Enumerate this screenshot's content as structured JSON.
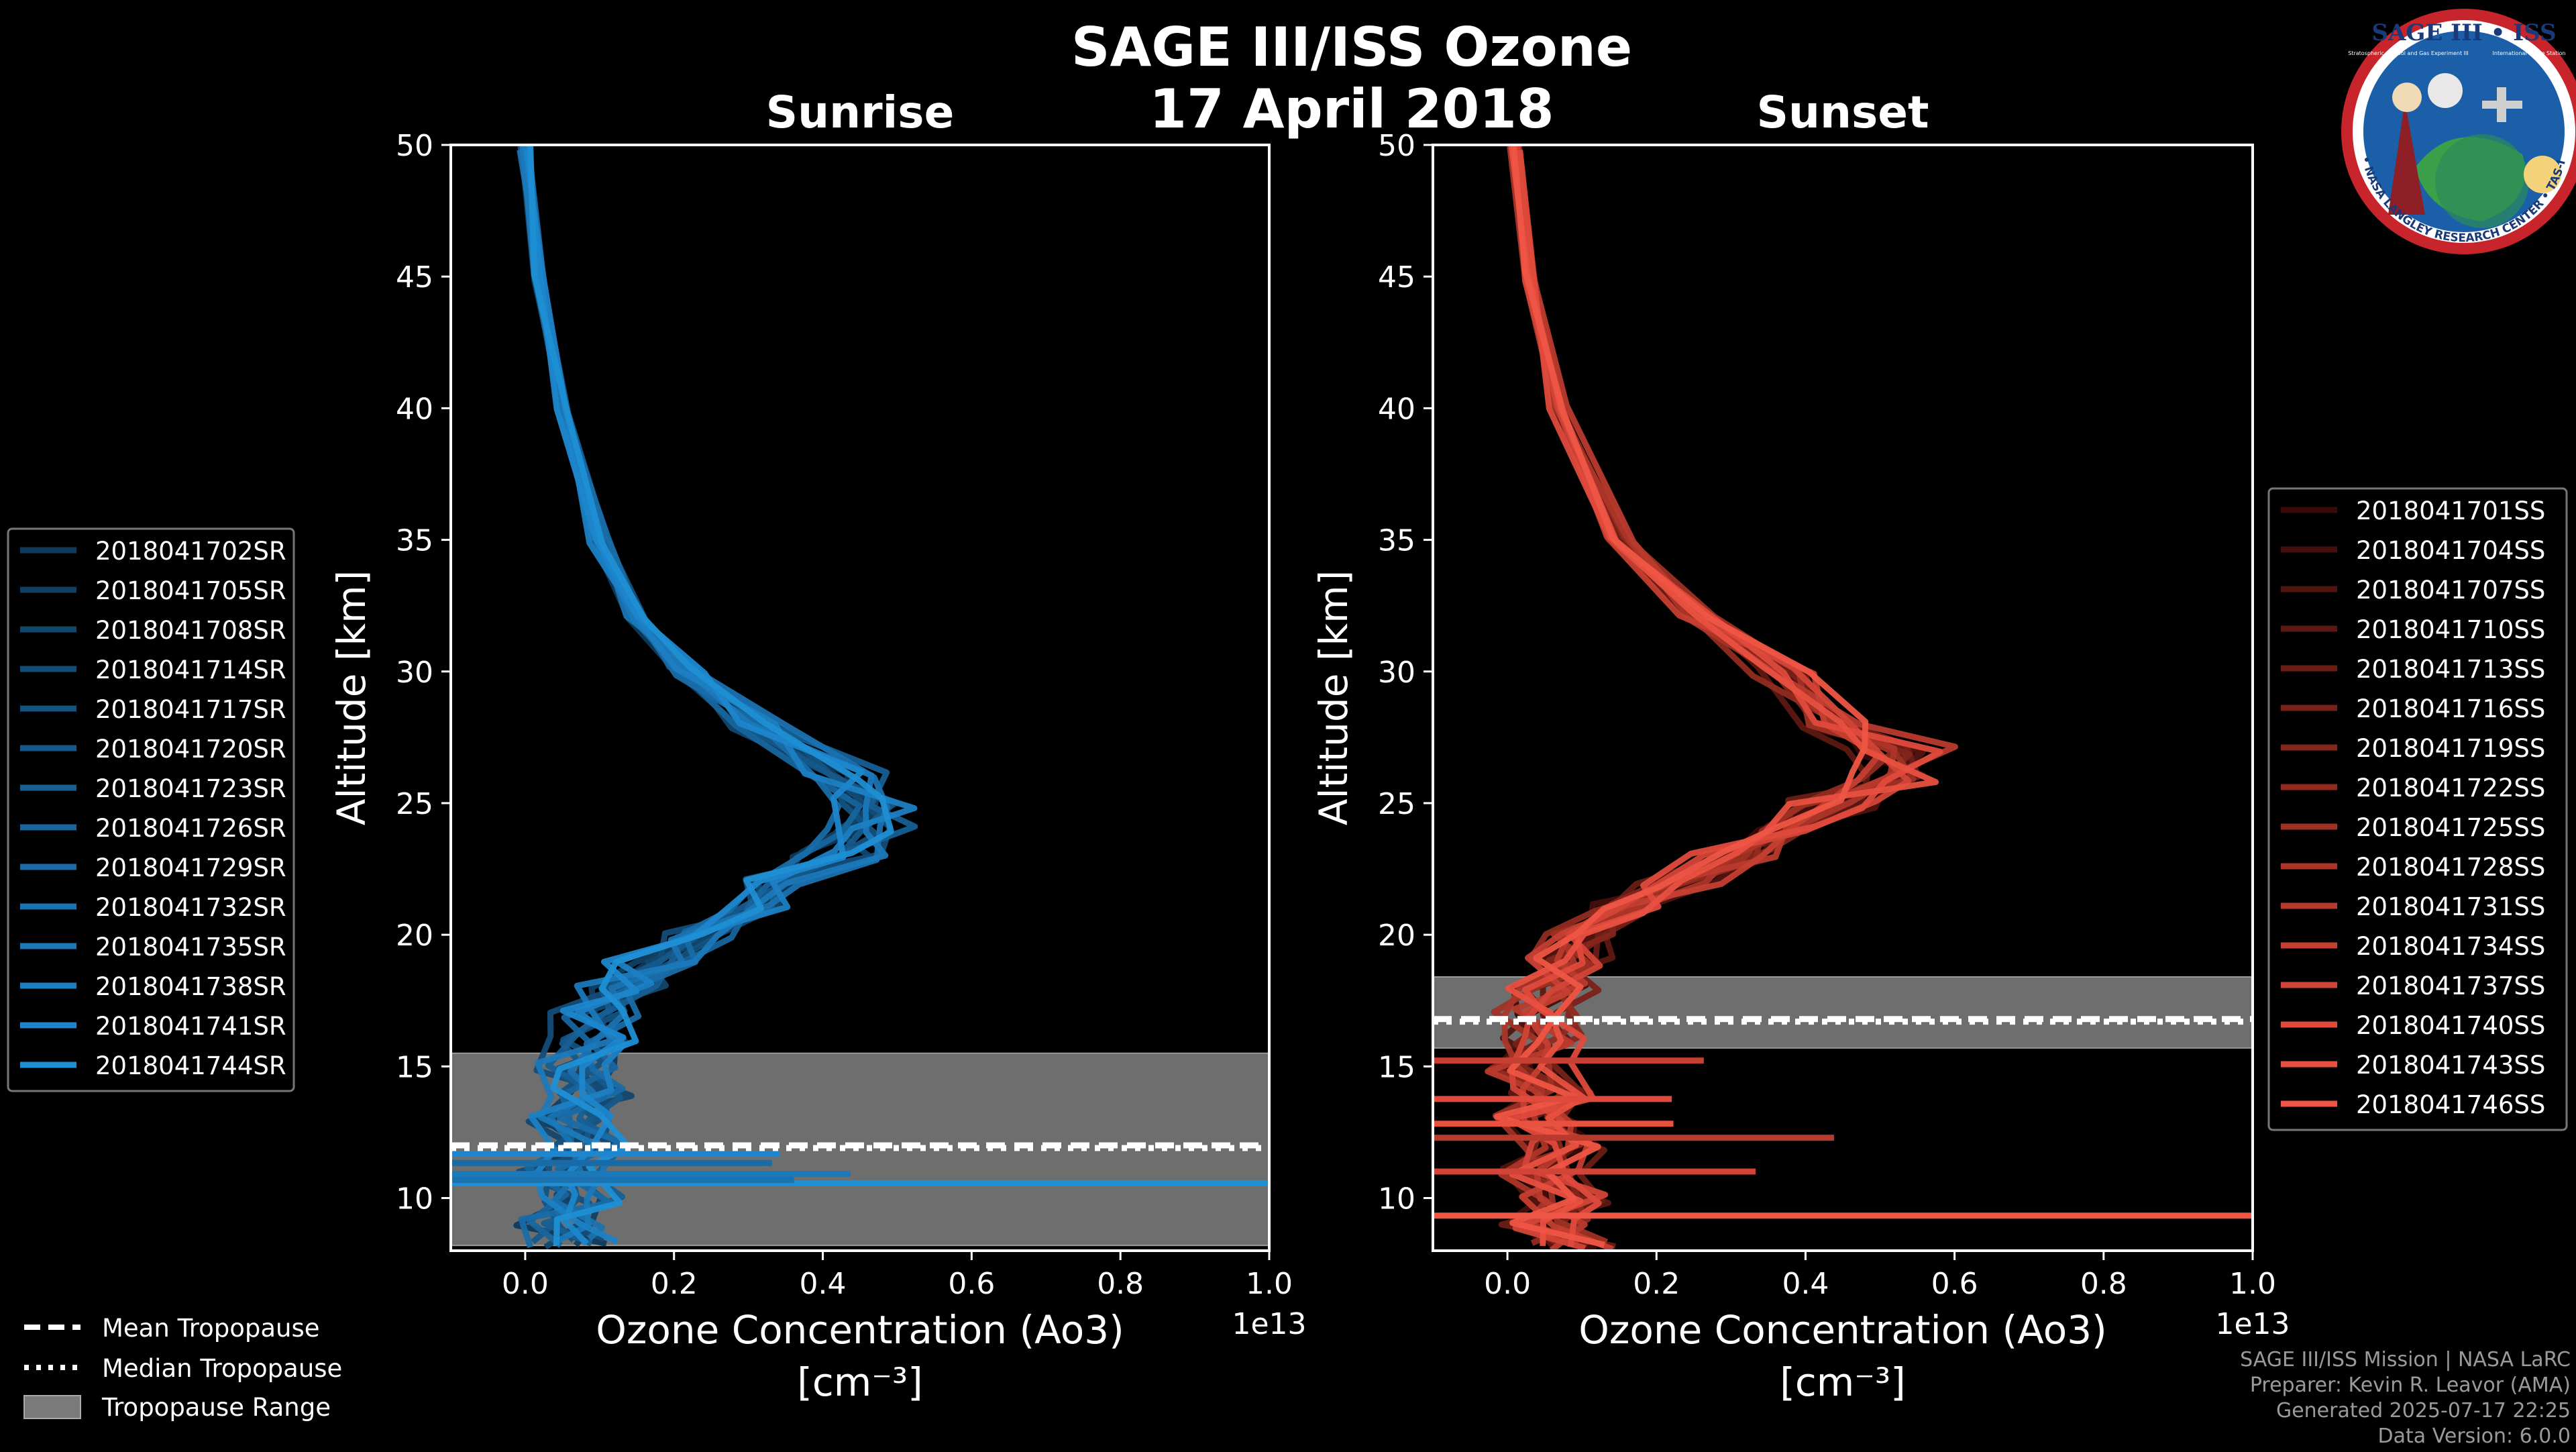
{
  "title_line1": "SAGE III/ISS Ozone",
  "title_line2": "17 April 2018",
  "logo": {
    "text_top": "SAGE III • ISS",
    "text_ring": "BALL • NASA LANGLEY RESEARCH CENTER • TAS-I • ESA",
    "text_small_left": "Stratospheric Aerosol and Gas Experiment III",
    "text_small_right": "International Space Station"
  },
  "footer": {
    "line1": "SAGE III/ISS Mission | NASA LaRC",
    "line2": "Preparer: Kevin R. Leavor (AMA)",
    "line3": "Generated 2025-07-17 22:25",
    "line4": "Data Version: 6.0.0"
  },
  "shared_legend": {
    "mean": "Mean Tropopause",
    "median": "Median Tropopause",
    "range": "Tropopause Range"
  },
  "colors": {
    "sunrise": "#1f8fd4",
    "sunset": "#ef5545",
    "tropo_fill": "#7a7a7a"
  },
  "chart_data": [
    {
      "type": "line",
      "title": "Sunrise",
      "xlabel": "Ozone Concentration (Ao3)",
      "xunits": "[cm⁻³]",
      "ylabel": "Altitude [km]",
      "xlim": [
        -0.1,
        1.0
      ],
      "ylim": [
        8,
        50
      ],
      "x_scale_label": "1e13",
      "xticks": [
        "0.0",
        "0.2",
        "0.4",
        "0.6",
        "0.8",
        "1.0"
      ],
      "yticks": [
        "10",
        "15",
        "20",
        "25",
        "30",
        "35",
        "40",
        "45",
        "50"
      ],
      "tropopause": {
        "mean_km": 12.0,
        "median_km": 11.9,
        "range_km": [
          8.2,
          15.5
        ]
      },
      "profile_altitudes_km": [
        50,
        45,
        40,
        35,
        32,
        30,
        28,
        26,
        25,
        24,
        23,
        22,
        21,
        20,
        19,
        18,
        17,
        16,
        15,
        14,
        13,
        12,
        11,
        10,
        9,
        8.3
      ],
      "profile_base": [
        0.0,
        0.02,
        0.05,
        0.1,
        0.15,
        0.22,
        0.32,
        0.43,
        0.47,
        0.45,
        0.42,
        0.36,
        0.3,
        0.23,
        0.17,
        0.13,
        0.1,
        0.09,
        0.07,
        0.09,
        0.06,
        0.09,
        0.05,
        0.08,
        0.04,
        0.07
      ],
      "series_names": [
        "2018041702SR",
        "2018041705SR",
        "2018041708SR",
        "2018041714SR",
        "2018041717SR",
        "2018041720SR",
        "2018041723SR",
        "2018041726SR",
        "2018041729SR",
        "2018041732SR",
        "2018041735SR",
        "2018041738SR",
        "2018041741SR",
        "2018041744SR"
      ],
      "series_colors": [
        "#0f3a5c",
        "#113f63",
        "#12466d",
        "#134c77",
        "#145280",
        "#15588a",
        "#165f93",
        "#17659d",
        "#186ba6",
        "#1a72b0",
        "#1b78b9",
        "#1c7fc3",
        "#1d86cc",
        "#1f8fd4"
      ]
    },
    {
      "type": "line",
      "title": "Sunset",
      "xlabel": "Ozone Concentration (Ao3)",
      "xunits": "[cm⁻³]",
      "ylabel": "Altitude [km]",
      "xlim": [
        -0.1,
        1.0
      ],
      "ylim": [
        8,
        50
      ],
      "x_scale_label": "1e13",
      "xticks": [
        "0.0",
        "0.2",
        "0.4",
        "0.6",
        "0.8",
        "1.0"
      ],
      "yticks": [
        "10",
        "15",
        "20",
        "25",
        "30",
        "35",
        "40",
        "45",
        "50"
      ],
      "tropopause": {
        "mean_km": 16.8,
        "median_km": 16.7,
        "range_km": [
          15.7,
          18.4
        ]
      },
      "profile_altitudes_km": [
        50,
        45,
        40,
        35,
        32,
        30,
        28,
        27,
        26,
        25,
        24,
        23,
        22,
        21,
        20,
        19,
        18,
        17,
        16,
        15,
        14,
        13,
        12,
        11,
        10,
        9,
        8.2
      ],
      "profile_base": [
        0.01,
        0.03,
        0.07,
        0.15,
        0.26,
        0.37,
        0.47,
        0.52,
        0.5,
        0.44,
        0.37,
        0.3,
        0.23,
        0.16,
        0.1,
        0.08,
        0.06,
        0.04,
        0.05,
        0.03,
        0.06,
        0.03,
        0.07,
        0.04,
        0.08,
        0.05,
        0.09
      ],
      "series_names": [
        "2018041701SS",
        "2018041704SS",
        "2018041707SS",
        "2018041710SS",
        "2018041713SS",
        "2018041716SS",
        "2018041719SS",
        "2018041722SS",
        "2018041725SS",
        "2018041728SS",
        "2018041731SS",
        "2018041734SS",
        "2018041737SS",
        "2018041740SS",
        "2018041743SS",
        "2018041746SS"
      ],
      "series_colors": [
        "#3a0a08",
        "#45100c",
        "#51140f",
        "#5d1812",
        "#6a1d15",
        "#772118",
        "#84261c",
        "#912b20",
        "#9e3024",
        "#ab3528",
        "#b83a2d",
        "#c53f32",
        "#d24437",
        "#df4a3c",
        "#e85040",
        "#ef5545"
      ]
    }
  ]
}
